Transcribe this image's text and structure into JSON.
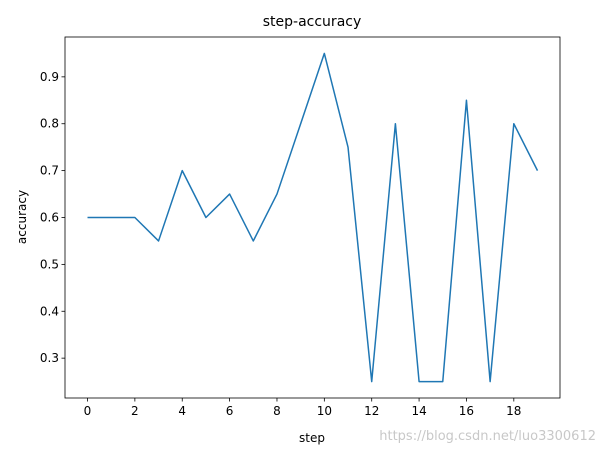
{
  "chart_data": {
    "type": "line",
    "title": "step-accuracy",
    "x_label": "step",
    "y_label": "accuracy",
    "x": [
      0,
      1,
      2,
      3,
      4,
      5,
      6,
      7,
      8,
      9,
      10,
      11,
      12,
      13,
      14,
      15,
      16,
      17,
      18,
      19
    ],
    "series": [
      {
        "name": "accuracy",
        "color": "#1f77b4",
        "values": [
          0.6,
          0.6,
          0.6,
          0.55,
          0.7,
          0.6,
          0.65,
          0.55,
          0.65,
          0.8,
          0.95,
          0.75,
          0.25,
          0.8,
          0.25,
          0.25,
          0.85,
          0.25,
          0.8,
          0.7
        ]
      }
    ],
    "xlim": [
      -0.95,
      19.95
    ],
    "ylim": [
      0.215,
      0.985
    ],
    "xticks": [
      0,
      2,
      4,
      6,
      8,
      10,
      12,
      14,
      16,
      18
    ],
    "yticks": [
      0.3,
      0.4,
      0.5,
      0.6,
      0.7,
      0.8,
      0.9
    ],
    "watermark": "https://blog.csdn.net/luo3300612"
  }
}
